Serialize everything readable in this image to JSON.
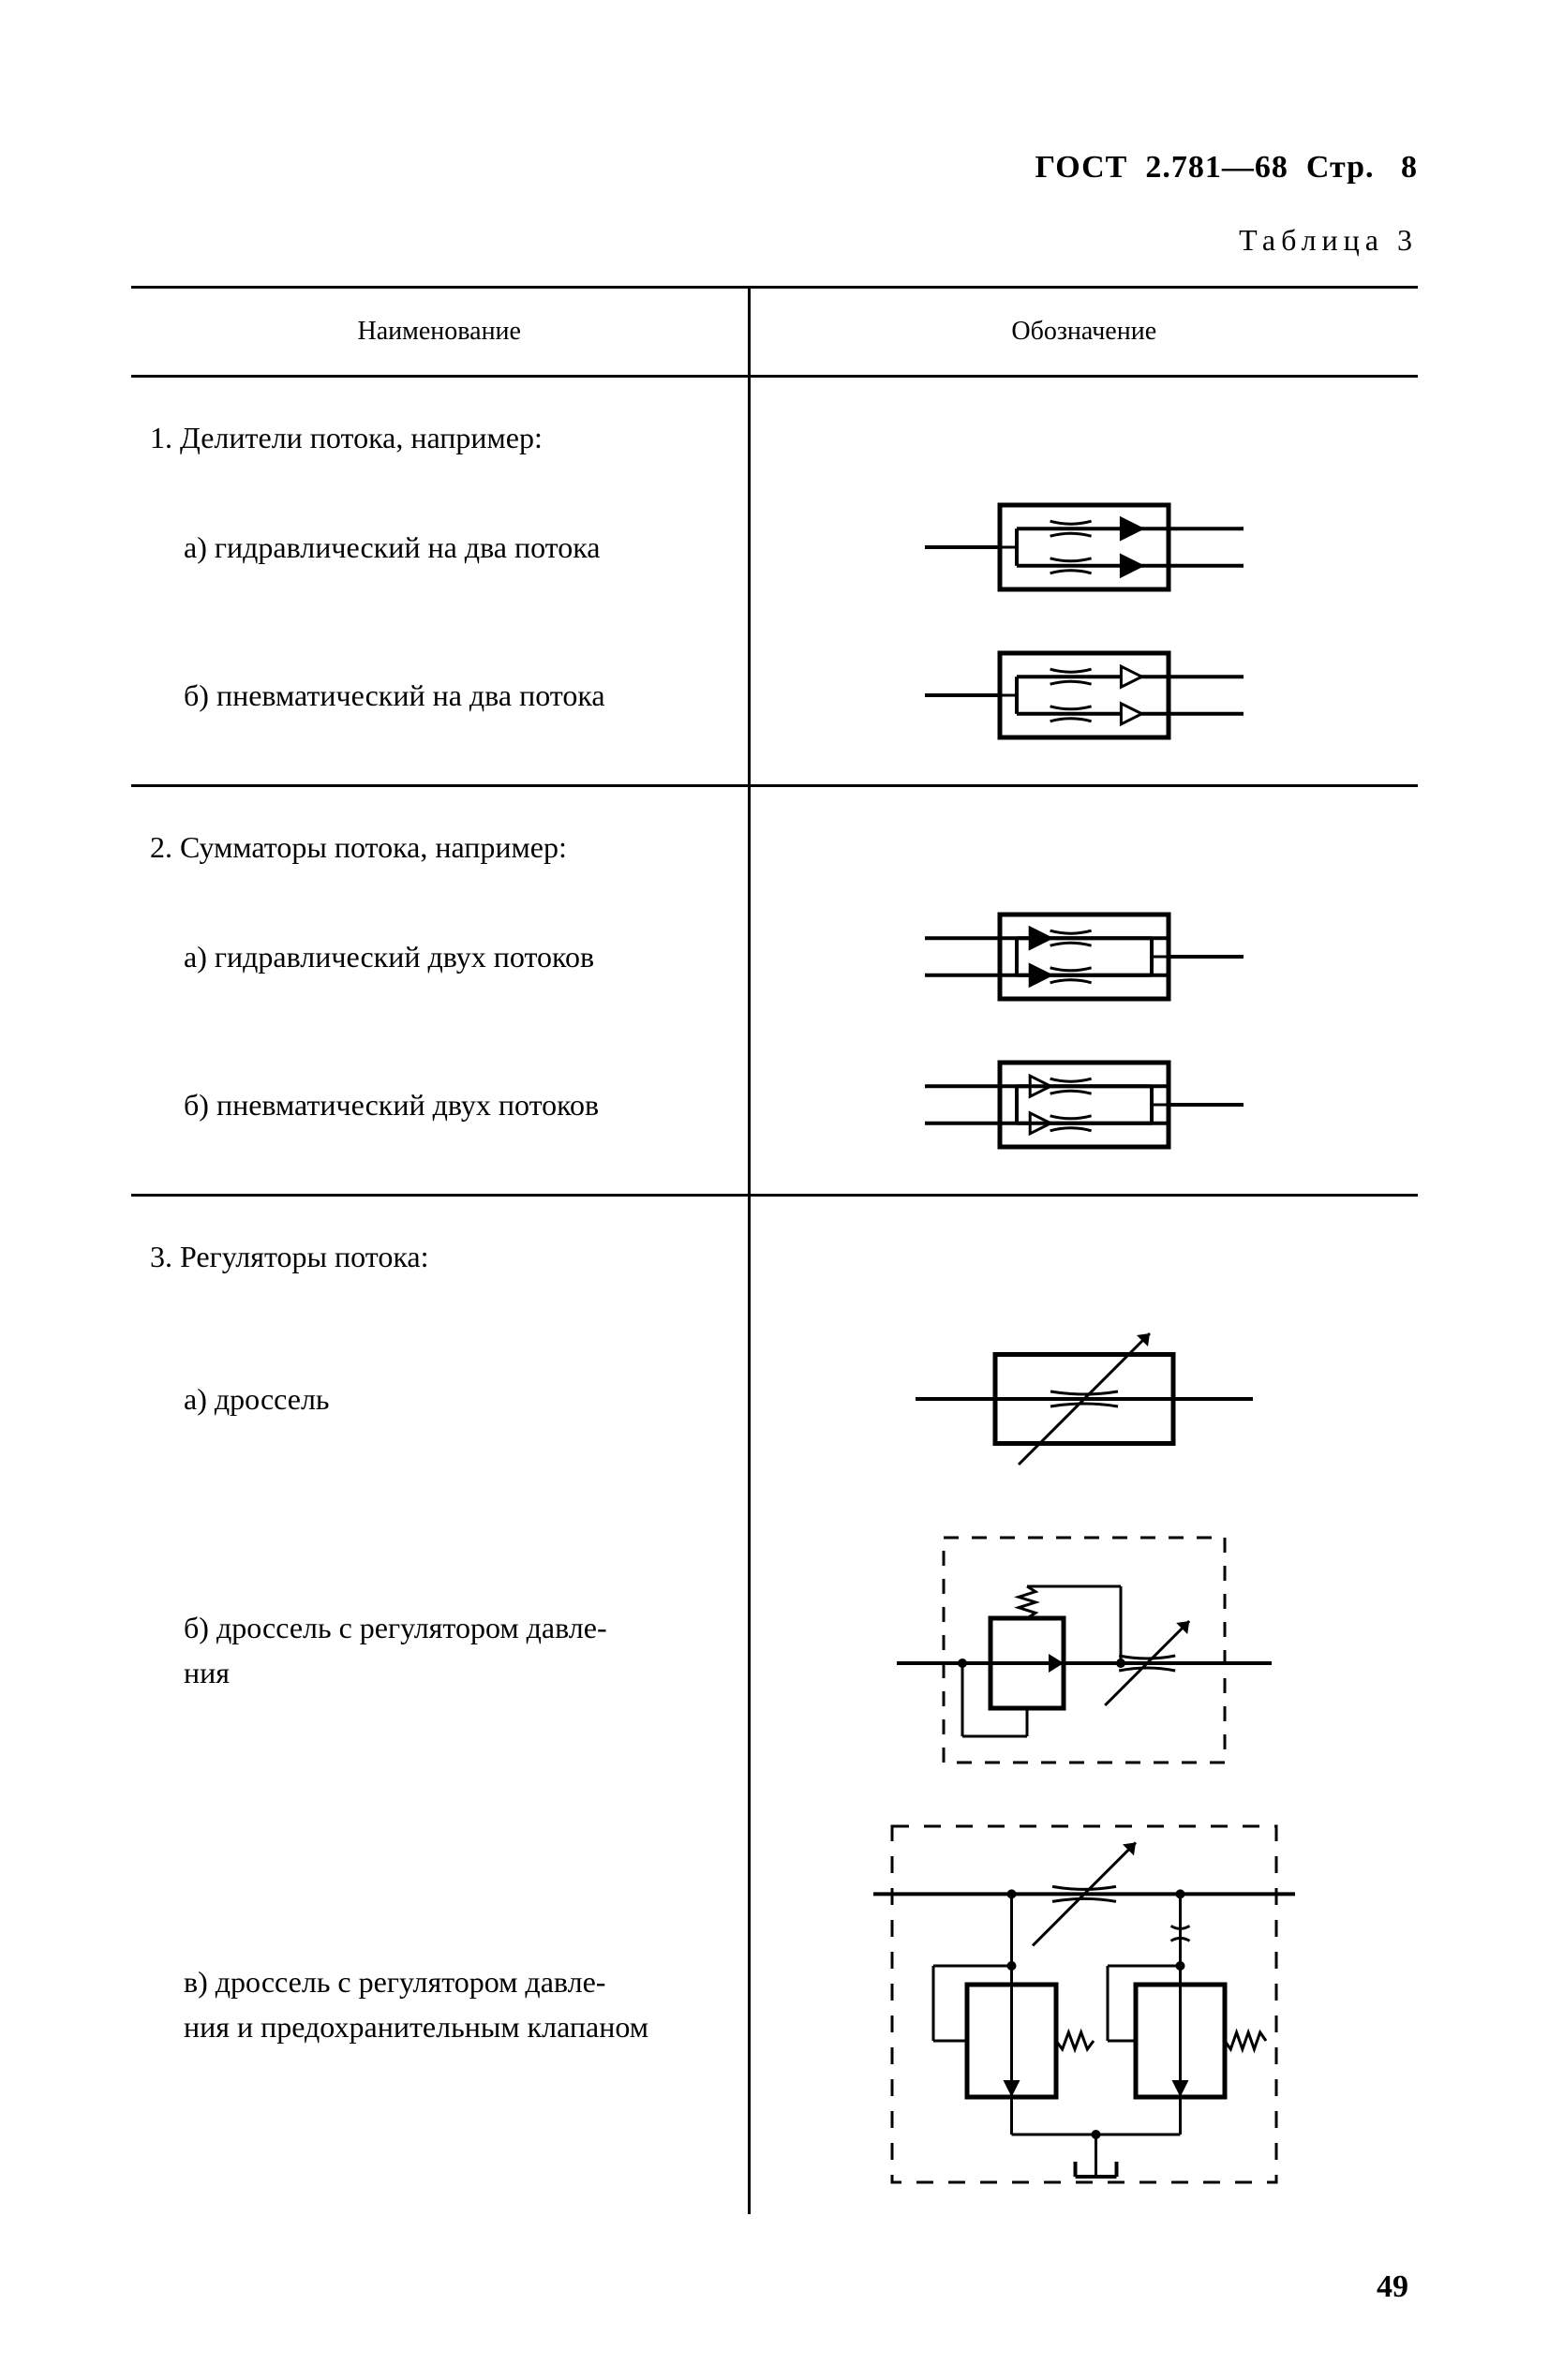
{
  "header": {
    "standard": "ГОСТ",
    "number": "2.781—68",
    "page_prefix": "Стр.",
    "page": "8"
  },
  "table_label": "Таблица 3",
  "columns": {
    "name": "Наименование",
    "symbol": "Обозначение"
  },
  "sections": [
    {
      "title": "1. Делители потока, например:",
      "items": [
        {
          "label": "а) гидравлический на два потока",
          "diagram": "divider_hyd"
        },
        {
          "label": "б) пневматический на два потока",
          "diagram": "divider_pneu"
        }
      ]
    },
    {
      "title": "2. Сумматоры потока, например:",
      "items": [
        {
          "label": "а) гидравлический двух потоков",
          "diagram": "summ_hyd"
        },
        {
          "label": "б) пневматический двух потоков",
          "diagram": "summ_pneu"
        }
      ]
    },
    {
      "title": "3. Регуляторы потока:",
      "items": [
        {
          "label": "а) дроссель",
          "diagram": "throttle"
        },
        {
          "label": "б) дроссель с регулятором давле-\nния",
          "diagram": "throttle_preg"
        },
        {
          "label": "в) дроссель с регулятором давле-\nния и предохранительным клапаном",
          "diagram": "throttle_preg_safety"
        }
      ]
    }
  ],
  "page_number": "49",
  "style": {
    "stroke_color": "#000000",
    "fill_solid": "#000000",
    "fill_hollow": "#ffffff",
    "stroke_width_box": 5,
    "stroke_width_line": 4,
    "stroke_width_thin": 3,
    "symbol_box_w": 180,
    "symbol_box_h": 90,
    "svg_small_w": 360,
    "svg_small_h": 130,
    "svg_med_w": 380,
    "svg_med_h": 200,
    "svg_large_w": 420,
    "svg_large_h": 280,
    "svg_xlarge_w": 470,
    "svg_xlarge_h": 420
  }
}
